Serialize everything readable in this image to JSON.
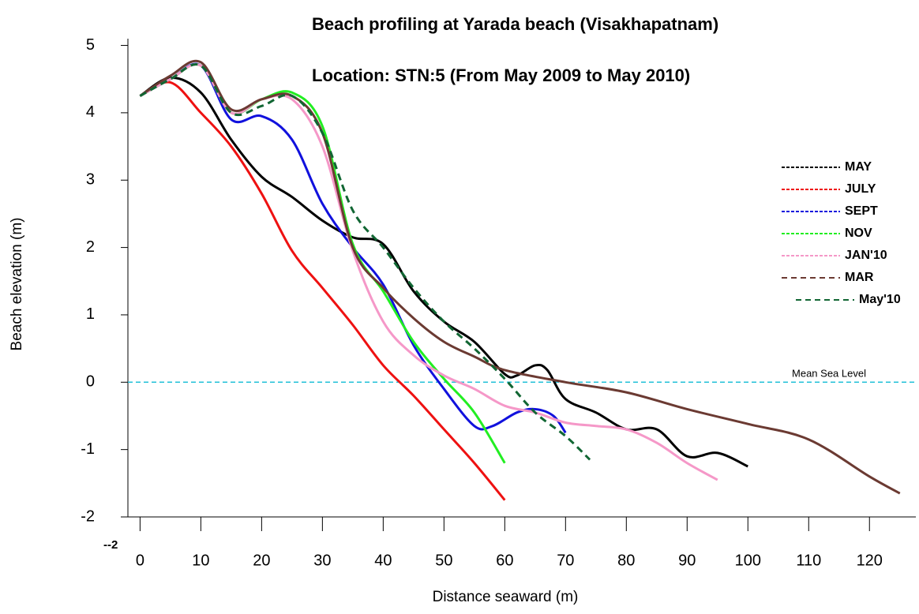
{
  "chart_data": {
    "type": "line",
    "title": "Beach profiling at Yarada beach (Visakhapatnam)",
    "subtitle": "Location: STN:5 (From May 2009 to May 2010)",
    "x_label": "Distance seaward (m)",
    "y_label": "Beach elevation (m)",
    "corner_label": "--2",
    "reference_line": {
      "value": 0,
      "label": "Mean Sea Level",
      "color": "#22c0d8"
    },
    "xlim": [
      -2,
      127.5
    ],
    "ylim": [
      -2,
      5.1
    ],
    "xticks": [
      0,
      10,
      20,
      30,
      40,
      50,
      60,
      70,
      80,
      90,
      100,
      110,
      120
    ],
    "yticks": [
      5,
      4,
      3,
      2,
      1,
      0,
      -1,
      -2
    ],
    "legend": "right",
    "series": [
      {
        "name": "MAY",
        "color": "#000000",
        "x": [
          0,
          5,
          10,
          15,
          20,
          25,
          30,
          35,
          40,
          45,
          50,
          55,
          60,
          62,
          65,
          67,
          70,
          75,
          80,
          85,
          90,
          95,
          100
        ],
        "values": [
          4.25,
          4.52,
          4.3,
          3.6,
          3.05,
          2.75,
          2.4,
          2.15,
          2.05,
          1.35,
          0.9,
          0.6,
          0.12,
          0.1,
          0.25,
          0.18,
          -0.25,
          -0.45,
          -0.7,
          -0.7,
          -1.1,
          -1.05,
          -1.25
        ]
      },
      {
        "name": "JULY",
        "color": "#ee1111",
        "x": [
          0,
          5,
          10,
          15,
          20,
          25,
          30,
          35,
          40,
          45,
          50,
          55,
          60
        ],
        "values": [
          4.25,
          4.45,
          4.0,
          3.5,
          2.8,
          1.95,
          1.4,
          0.85,
          0.25,
          -0.2,
          -0.7,
          -1.2,
          -1.75
        ]
      },
      {
        "name": "SEPT",
        "color": "#1111dd",
        "x": [
          0,
          5,
          10,
          15,
          20,
          25,
          30,
          35,
          40,
          45,
          50,
          55,
          58,
          62,
          65,
          68,
          70
        ],
        "values": [
          4.25,
          4.5,
          4.7,
          3.9,
          3.95,
          3.6,
          2.65,
          2.0,
          1.45,
          0.55,
          -0.1,
          -0.65,
          -0.65,
          -0.45,
          -0.4,
          -0.5,
          -0.75
        ]
      },
      {
        "name": "NOV",
        "color": "#22ee22",
        "x": [
          0,
          5,
          10,
          15,
          20,
          25,
          30,
          35,
          40,
          45,
          50,
          55,
          60
        ],
        "values": [
          4.25,
          4.5,
          4.7,
          4.0,
          4.2,
          4.3,
          3.8,
          2.05,
          1.35,
          0.6,
          0.05,
          -0.45,
          -1.2
        ]
      },
      {
        "name": "JAN'10",
        "color": "#f598c8",
        "x": [
          0,
          5,
          10,
          15,
          20,
          25,
          30,
          35,
          40,
          45,
          50,
          55,
          60,
          65,
          70,
          75,
          80,
          85,
          90,
          95
        ],
        "values": [
          4.25,
          4.5,
          4.7,
          4.0,
          4.2,
          4.2,
          3.5,
          1.95,
          0.9,
          0.4,
          0.1,
          -0.1,
          -0.35,
          -0.45,
          -0.6,
          -0.65,
          -0.7,
          -0.9,
          -1.2,
          -1.45
        ]
      },
      {
        "name": "MAR",
        "color": "#6b3a32",
        "x": [
          0,
          5,
          10,
          15,
          20,
          25,
          30,
          35,
          40,
          45,
          50,
          55,
          60,
          70,
          80,
          90,
          100,
          110,
          120,
          125
        ],
        "values": [
          4.25,
          4.55,
          4.75,
          4.05,
          4.2,
          4.25,
          3.7,
          2.0,
          1.4,
          0.95,
          0.6,
          0.38,
          0.18,
          0.0,
          -0.15,
          -0.4,
          -0.62,
          -0.85,
          -1.4,
          -1.65
        ]
      },
      {
        "name": "May'10",
        "color": "#116633",
        "line_style": "dashed",
        "x": [
          0,
          5,
          10,
          15,
          20,
          25,
          30,
          35,
          40,
          45,
          50,
          55,
          60,
          65,
          70,
          74
        ],
        "values": [
          4.25,
          4.5,
          4.7,
          4.0,
          4.1,
          4.25,
          3.7,
          2.55,
          2.0,
          1.4,
          0.9,
          0.5,
          0.05,
          -0.45,
          -0.8,
          -1.15
        ]
      }
    ]
  }
}
